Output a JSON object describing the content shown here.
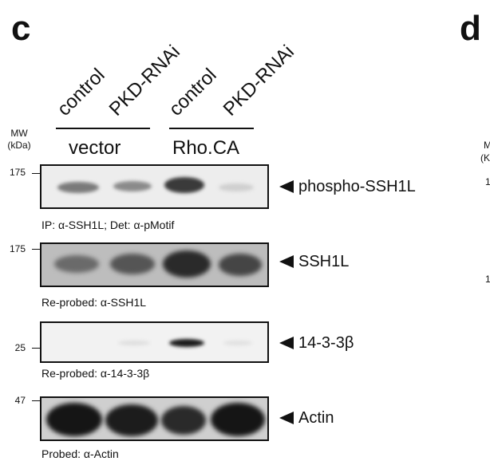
{
  "panel_c": {
    "letter": "c",
    "lanes": [
      "control",
      "PKD-RNAi",
      "control",
      "PKD-RNAi"
    ],
    "groups": [
      "vector",
      "Rho.CA"
    ],
    "mw_label_line1": "MW",
    "mw_label_line2": "(kDa)",
    "blots": [
      {
        "marker": "175",
        "target": "phospho-SSH1L",
        "caption": "IP: α-SSH1L; Det: α-pMotif"
      },
      {
        "marker": "175",
        "target": "SSH1L",
        "caption": "Re-probed: α-SSH1L"
      },
      {
        "marker": "25",
        "target": "14-3-3β",
        "caption": "Re-probed: α-14-3-3β"
      },
      {
        "marker": "47",
        "target": "Actin",
        "caption": "Probed: α-Actin"
      }
    ]
  },
  "panel_d": {
    "letter": "d",
    "partial_labels": [
      "M",
      "(K",
      "1",
      "1"
    ]
  }
}
